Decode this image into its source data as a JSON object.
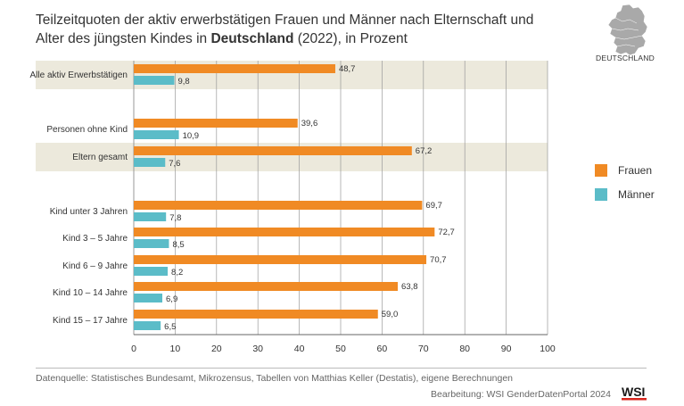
{
  "header": {
    "title_part1": "Teilzeitquoten der aktiv erwerbstätigen Frauen und Männer nach Elternschaft und Alter des jüngsten Kindes in ",
    "title_bold": "Deutschland",
    "title_part2": " (2022), in Prozent",
    "map_label": "DEUTSCHLAND"
  },
  "legend": {
    "frauen": "Frauen",
    "maenner": "Männer"
  },
  "colors": {
    "frauen": "#f08a24",
    "maenner": "#5bbcc8",
    "band": "#ece9dc",
    "grid": "#999999"
  },
  "chart_data": {
    "type": "bar",
    "orientation": "horizontal",
    "categories": [
      "Alle aktiv Erwerbstätigen",
      "Personen ohne Kind",
      "Eltern gesamt",
      "Kind unter 3 Jahren",
      "Kind 3 – 5 Jahre",
      "Kind 6 – 9 Jahre",
      "Kind 10 – 14 Jahre",
      "Kind 15 – 17 Jahre"
    ],
    "series": [
      {
        "name": "Frauen",
        "values": [
          48.7,
          39.6,
          67.2,
          69.7,
          72.7,
          70.7,
          63.8,
          59.0
        ],
        "labels": [
          "48,7",
          "39,6",
          "67,2",
          "69,7",
          "72,7",
          "70,7",
          "63,8",
          "59,0"
        ]
      },
      {
        "name": "Männer",
        "values": [
          9.8,
          10.9,
          7.6,
          7.8,
          8.5,
          8.2,
          6.9,
          6.5
        ],
        "labels": [
          "9,8",
          "10,9",
          "7,6",
          "7,8",
          "8,5",
          "8,2",
          "6,9",
          "6,5"
        ]
      }
    ],
    "xlim": [
      0,
      100
    ],
    "xticks": [
      0,
      10,
      20,
      30,
      40,
      50,
      60,
      70,
      80,
      90,
      100
    ],
    "grid": true,
    "legend_position": "right"
  },
  "footer": {
    "source": "Datenquelle: Statistisches Bundesamt, Mikrozensus, Tabellen von Matthias Keller (Destatis), eigene Berechnungen",
    "credit": "Bearbeitung: WSI GenderDatenPortal 2024",
    "logo_text": "WSI"
  }
}
